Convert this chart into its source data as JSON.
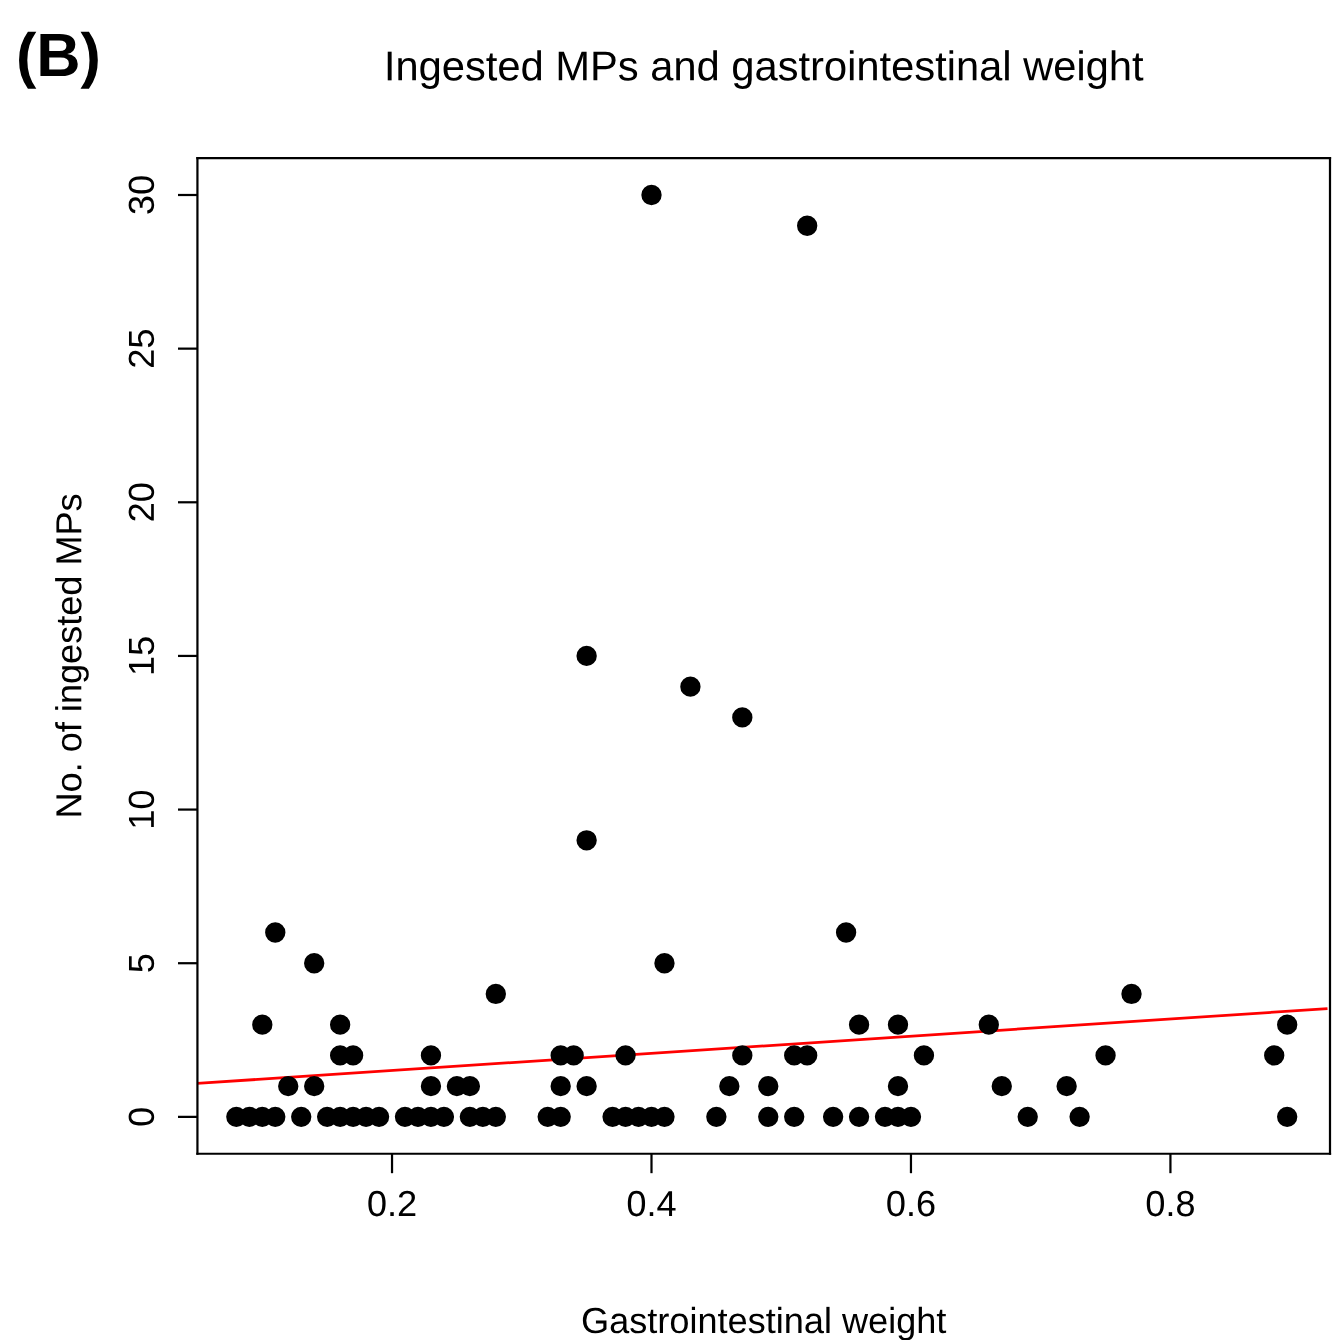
{
  "chart_data": {
    "type": "scatter",
    "title": "Ingested MPs and gastrointestinal weight",
    "xlabel": "Gastrointestinal weight",
    "ylabel": "No. of ingested MPs",
    "annotations": [
      "(B)"
    ],
    "xlim": [
      0.05,
      0.923
    ],
    "xticks": [
      0.2,
      0.4,
      0.6,
      0.8
    ],
    "ylim": [
      -1.2,
      31.2
    ],
    "yticks": [
      0,
      5,
      10,
      15,
      20,
      25,
      30
    ],
    "grid": false,
    "legend": false,
    "series": [
      {
        "color": "#000000",
        "marker": "circle",
        "x": [
          0.08,
          0.09,
          0.1,
          0.11,
          0.13,
          0.15,
          0.16,
          0.17,
          0.18,
          0.19,
          0.21,
          0.22,
          0.23,
          0.24,
          0.26,
          0.27,
          0.28,
          0.32,
          0.33,
          0.37,
          0.38,
          0.39,
          0.4,
          0.41,
          0.45,
          0.49,
          0.51,
          0.54,
          0.56,
          0.58,
          0.59,
          0.6,
          0.69,
          0.73,
          0.89,
          0.12,
          0.14,
          0.23,
          0.25,
          0.26,
          0.33,
          0.35,
          0.46,
          0.49,
          0.59,
          0.67,
          0.72,
          0.16,
          0.17,
          0.23,
          0.33,
          0.34,
          0.38,
          0.47,
          0.51,
          0.52,
          0.61,
          0.75,
          0.88,
          0.1,
          0.16,
          0.56,
          0.59,
          0.66,
          0.89,
          0.28,
          0.77,
          0.14,
          0.41,
          0.11,
          0.55,
          0.35,
          0.35,
          0.47,
          0.43,
          0.52,
          0.4
        ],
        "values": [
          0,
          0,
          0,
          0,
          0,
          0,
          0,
          0,
          0,
          0,
          0,
          0,
          0,
          0,
          0,
          0,
          0,
          0,
          0,
          0,
          0,
          0,
          0,
          0,
          0,
          0,
          0,
          0,
          0,
          0,
          0,
          0,
          0,
          0,
          0,
          1,
          1,
          1,
          1,
          1,
          1,
          1,
          1,
          1,
          1,
          1,
          1,
          2,
          2,
          2,
          2,
          2,
          2,
          2,
          2,
          2,
          2,
          2,
          2,
          3,
          3,
          3,
          3,
          3,
          3,
          4,
          4,
          5,
          5,
          6,
          6,
          9,
          15,
          13,
          14,
          29,
          30
        ]
      },
      {
        "type": "line",
        "color": "#ff0000",
        "x": [
          0.05,
          0.92
        ],
        "values": [
          1.09,
          3.52
        ]
      }
    ]
  }
}
